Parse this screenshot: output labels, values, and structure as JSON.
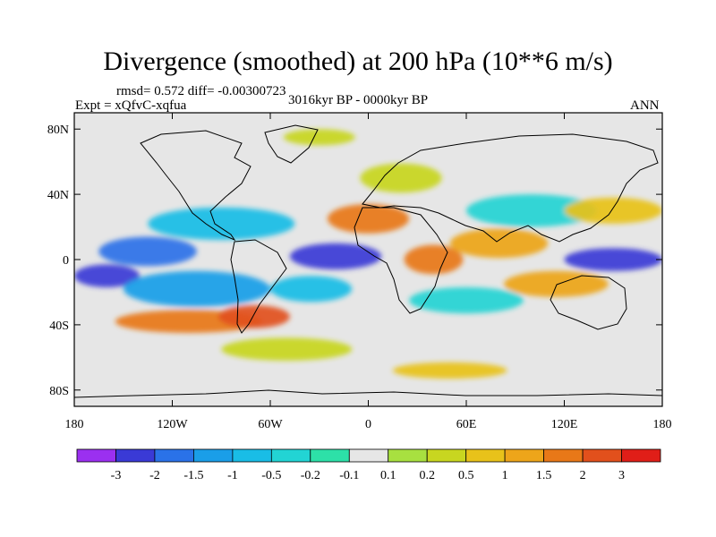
{
  "chart_data": {
    "type": "heatmap",
    "title": "Divergence (smoothed) at 200 hPa (10**6 m/s)",
    "stats_text": "rmsd= 0.572  diff= -0.00300723",
    "experiment_text": "Expt = xQfvC-xqfua",
    "period_text": "3016kyr BP - 0000kyr BP",
    "season_text": "ANN",
    "xlim": [
      -180,
      180
    ],
    "ylim": [
      -90,
      90
    ],
    "x_ticks": [
      {
        "value": -180,
        "label": "180"
      },
      {
        "value": -120,
        "label": "120W"
      },
      {
        "value": -60,
        "label": "60W"
      },
      {
        "value": 0,
        "label": "0"
      },
      {
        "value": 60,
        "label": "60E"
      },
      {
        "value": 120,
        "label": "120E"
      },
      {
        "value": 180,
        "label": "180"
      }
    ],
    "y_ticks": [
      {
        "value": 80,
        "label": "80N"
      },
      {
        "value": 40,
        "label": "40N"
      },
      {
        "value": 0,
        "label": "0"
      },
      {
        "value": -40,
        "label": "40S"
      },
      {
        "value": -80,
        "label": "80S"
      }
    ],
    "colorbar": {
      "colors": [
        "#9b30f0",
        "#3a3ad6",
        "#2a72e8",
        "#1a9ee8",
        "#19bde6",
        "#22d4d4",
        "#2de0a8",
        "#e6e6e6",
        "#a8e040",
        "#c8d620",
        "#e8c21a",
        "#eda51a",
        "#e87818",
        "#e2501c",
        "#e01e18"
      ],
      "labels": [
        "-3",
        "-2",
        "-1.5",
        "-1",
        "-0.5",
        "-0.2",
        "-0.1",
        "0.1",
        "0.2",
        "0.5",
        "1",
        "1.5",
        "2",
        "3"
      ]
    },
    "regions": [
      {
        "lon": -135,
        "lat": 5,
        "rx": 30,
        "ry": 9,
        "level": -2
      },
      {
        "lon": -160,
        "lat": -10,
        "rx": 20,
        "ry": 7,
        "level": -3
      },
      {
        "lon": -105,
        "lat": -18,
        "rx": 45,
        "ry": 11,
        "level": -1.5
      },
      {
        "lon": -90,
        "lat": 22,
        "rx": 45,
        "ry": 10,
        "level": -1
      },
      {
        "lon": -20,
        "lat": 2,
        "rx": 28,
        "ry": 8,
        "level": -2.5
      },
      {
        "lon": -35,
        "lat": -18,
        "rx": 25,
        "ry": 8,
        "level": -1
      },
      {
        "lon": 150,
        "lat": 0,
        "rx": 30,
        "ry": 7,
        "level": -3
      },
      {
        "lon": 100,
        "lat": 30,
        "rx": 40,
        "ry": 10,
        "level": -0.5
      },
      {
        "lon": 60,
        "lat": -25,
        "rx": 35,
        "ry": 8,
        "level": -0.5
      },
      {
        "lon": -110,
        "lat": -38,
        "rx": 45,
        "ry": 7,
        "level": 1.5
      },
      {
        "lon": -70,
        "lat": -35,
        "rx": 22,
        "ry": 7,
        "level": 2
      },
      {
        "lon": 0,
        "lat": 25,
        "rx": 25,
        "ry": 9,
        "level": 1.5
      },
      {
        "lon": 40,
        "lat": 0,
        "rx": 18,
        "ry": 9,
        "level": 1.5
      },
      {
        "lon": 80,
        "lat": 10,
        "rx": 30,
        "ry": 9,
        "level": 1
      },
      {
        "lon": 115,
        "lat": -15,
        "rx": 32,
        "ry": 8,
        "level": 1
      },
      {
        "lon": 150,
        "lat": 30,
        "rx": 30,
        "ry": 8,
        "level": 0.5
      },
      {
        "lon": 20,
        "lat": 50,
        "rx": 25,
        "ry": 9,
        "level": 0.2
      },
      {
        "lon": -50,
        "lat": -55,
        "rx": 40,
        "ry": 7,
        "level": 0.2
      },
      {
        "lon": 50,
        "lat": -68,
        "rx": 35,
        "ry": 5,
        "level": 0.5
      },
      {
        "lon": -30,
        "lat": 75,
        "rx": 22,
        "ry": 5,
        "level": 0.2
      }
    ]
  }
}
